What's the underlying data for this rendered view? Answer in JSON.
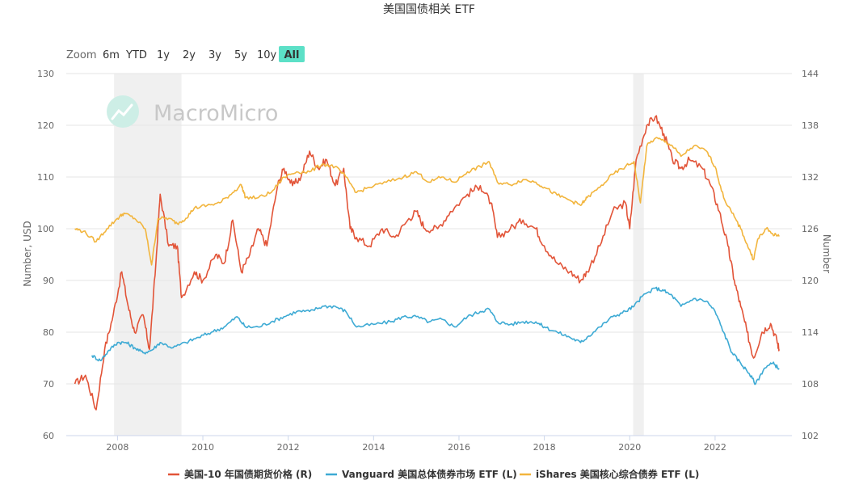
{
  "chart_data": {
    "type": "line",
    "title": "美国国债相关 ETF",
    "watermark": "MacroMicro",
    "left_axis": {
      "label": "Number, USD",
      "range": [
        60,
        130
      ],
      "ticks": [
        "60",
        "70",
        "80",
        "90",
        "100",
        "110",
        "120",
        "130"
      ]
    },
    "right_axis": {
      "label": "Number",
      "range": [
        102,
        144
      ],
      "ticks": [
        "102",
        "108",
        "114",
        "120",
        "126",
        "132",
        "138",
        "144"
      ]
    },
    "x_range": [
      2006.8,
      2023.8
    ],
    "x_ticks": [
      "2008",
      "2010",
      "2012",
      "2014",
      "2016",
      "2018",
      "2020",
      "2022"
    ],
    "grid": true,
    "legend_position": "bottom",
    "recession_shading": [
      [
        2007.92,
        2009.5
      ],
      [
        2020.08,
        2020.33
      ]
    ],
    "series": [
      {
        "name": "美国-10 年国债期货价格 (R)",
        "axis": "right",
        "color": "#e25438",
        "points": [
          [
            2007.0,
            108
          ],
          [
            2007.25,
            109
          ],
          [
            2007.5,
            105
          ],
          [
            2007.7,
            112
          ],
          [
            2007.9,
            116
          ],
          [
            2008.1,
            121
          ],
          [
            2008.25,
            117
          ],
          [
            2008.4,
            114
          ],
          [
            2008.6,
            116
          ],
          [
            2008.75,
            112
          ],
          [
            2008.9,
            122
          ],
          [
            2009.0,
            130
          ],
          [
            2009.2,
            124
          ],
          [
            2009.4,
            124
          ],
          [
            2009.5,
            118
          ],
          [
            2009.8,
            121
          ],
          [
            2010.0,
            120
          ],
          [
            2010.3,
            123
          ],
          [
            2010.5,
            122
          ],
          [
            2010.7,
            127
          ],
          [
            2010.9,
            121
          ],
          [
            2011.1,
            123
          ],
          [
            2011.3,
            126
          ],
          [
            2011.5,
            124
          ],
          [
            2011.75,
            131
          ],
          [
            2011.9,
            133
          ],
          [
            2012.1,
            131
          ],
          [
            2012.3,
            132
          ],
          [
            2012.5,
            135
          ],
          [
            2012.7,
            133
          ],
          [
            2012.9,
            134
          ],
          [
            2013.1,
            131
          ],
          [
            2013.3,
            133
          ],
          [
            2013.45,
            126
          ],
          [
            2013.6,
            125
          ],
          [
            2013.9,
            124
          ],
          [
            2014.2,
            126
          ],
          [
            2014.5,
            125
          ],
          [
            2014.8,
            127
          ],
          [
            2015.0,
            128
          ],
          [
            2015.2,
            126
          ],
          [
            2015.5,
            126
          ],
          [
            2015.8,
            128
          ],
          [
            2016.2,
            130
          ],
          [
            2016.5,
            131
          ],
          [
            2016.75,
            129
          ],
          [
            2016.9,
            125
          ],
          [
            2017.2,
            126
          ],
          [
            2017.5,
            127
          ],
          [
            2017.8,
            126
          ],
          [
            2018.0,
            124
          ],
          [
            2018.3,
            122
          ],
          [
            2018.6,
            121
          ],
          [
            2018.85,
            120
          ],
          [
            2019.0,
            121
          ],
          [
            2019.3,
            124
          ],
          [
            2019.6,
            128
          ],
          [
            2019.9,
            129
          ],
          [
            2020.0,
            126
          ],
          [
            2020.15,
            134
          ],
          [
            2020.4,
            138
          ],
          [
            2020.6,
            139
          ],
          [
            2020.8,
            137
          ],
          [
            2021.0,
            134
          ],
          [
            2021.2,
            133
          ],
          [
            2021.4,
            134
          ],
          [
            2021.7,
            133
          ],
          [
            2021.9,
            131
          ],
          [
            2022.1,
            128
          ],
          [
            2022.3,
            124
          ],
          [
            2022.45,
            120
          ],
          [
            2022.6,
            117
          ],
          [
            2022.75,
            114
          ],
          [
            2022.9,
            111
          ],
          [
            2023.1,
            114
          ],
          [
            2023.3,
            115
          ],
          [
            2023.45,
            113
          ],
          [
            2023.5,
            112
          ]
        ]
      },
      {
        "name": "Vanguard 美国总体债券市场 ETF (L)",
        "axis": "left",
        "color": "#3daad4",
        "points": [
          [
            2007.4,
            75.5
          ],
          [
            2007.6,
            74.5
          ],
          [
            2007.8,
            76.5
          ],
          [
            2008.0,
            78
          ],
          [
            2008.2,
            78
          ],
          [
            2008.4,
            77
          ],
          [
            2008.6,
            76
          ],
          [
            2008.8,
            76.5
          ],
          [
            2009.0,
            78
          ],
          [
            2009.3,
            77
          ],
          [
            2009.6,
            78
          ],
          [
            2009.9,
            79
          ],
          [
            2010.2,
            80
          ],
          [
            2010.5,
            81
          ],
          [
            2010.8,
            83
          ],
          [
            2011.0,
            81
          ],
          [
            2011.3,
            81
          ],
          [
            2011.6,
            82
          ],
          [
            2011.9,
            83
          ],
          [
            2012.2,
            84
          ],
          [
            2012.5,
            84
          ],
          [
            2012.8,
            85
          ],
          [
            2013.1,
            85
          ],
          [
            2013.35,
            84
          ],
          [
            2013.6,
            81
          ],
          [
            2014.0,
            81.5
          ],
          [
            2014.4,
            82
          ],
          [
            2014.7,
            83
          ],
          [
            2015.0,
            83
          ],
          [
            2015.3,
            82
          ],
          [
            2015.6,
            82.5
          ],
          [
            2015.9,
            81
          ],
          [
            2016.2,
            83
          ],
          [
            2016.5,
            84
          ],
          [
            2016.7,
            84.5
          ],
          [
            2016.9,
            82
          ],
          [
            2017.2,
            81.5
          ],
          [
            2017.5,
            82
          ],
          [
            2017.8,
            82
          ],
          [
            2018.0,
            81
          ],
          [
            2018.3,
            80
          ],
          [
            2018.6,
            79
          ],
          [
            2018.85,
            78
          ],
          [
            2019.0,
            79
          ],
          [
            2019.3,
            81
          ],
          [
            2019.6,
            83
          ],
          [
            2019.9,
            84
          ],
          [
            2020.1,
            85
          ],
          [
            2020.3,
            87
          ],
          [
            2020.6,
            88.5
          ],
          [
            2020.8,
            88
          ],
          [
            2021.0,
            87
          ],
          [
            2021.2,
            85
          ],
          [
            2021.5,
            86.5
          ],
          [
            2021.8,
            86
          ],
          [
            2022.0,
            84
          ],
          [
            2022.2,
            80
          ],
          [
            2022.4,
            76
          ],
          [
            2022.6,
            74
          ],
          [
            2022.8,
            72
          ],
          [
            2022.95,
            70
          ],
          [
            2023.15,
            73
          ],
          [
            2023.35,
            74
          ],
          [
            2023.5,
            73
          ]
        ]
      },
      {
        "name": "iShares 美国核心综合债券 ETF (L)",
        "axis": "left",
        "color": "#f2b53d",
        "points": [
          [
            2007.0,
            100
          ],
          [
            2007.2,
            99.5
          ],
          [
            2007.5,
            97.5
          ],
          [
            2007.75,
            100
          ],
          [
            2008.0,
            102
          ],
          [
            2008.15,
            103
          ],
          [
            2008.4,
            102
          ],
          [
            2008.65,
            100
          ],
          [
            2008.8,
            93
          ],
          [
            2008.95,
            102
          ],
          [
            2009.2,
            102
          ],
          [
            2009.4,
            101
          ],
          [
            2009.6,
            102
          ],
          [
            2009.8,
            104
          ],
          [
            2010.1,
            104.5
          ],
          [
            2010.4,
            105
          ],
          [
            2010.7,
            107
          ],
          [
            2010.9,
            108.5
          ],
          [
            2011.0,
            106
          ],
          [
            2011.3,
            106
          ],
          [
            2011.6,
            107
          ],
          [
            2011.9,
            110
          ],
          [
            2012.2,
            111
          ],
          [
            2012.5,
            111
          ],
          [
            2012.8,
            112.5
          ],
          [
            2013.1,
            112
          ],
          [
            2013.35,
            110
          ],
          [
            2013.6,
            107
          ],
          [
            2013.9,
            108
          ],
          [
            2014.3,
            109
          ],
          [
            2014.7,
            110
          ],
          [
            2015.0,
            111
          ],
          [
            2015.3,
            109
          ],
          [
            2015.6,
            110
          ],
          [
            2015.9,
            109
          ],
          [
            2016.2,
            111
          ],
          [
            2016.5,
            112
          ],
          [
            2016.7,
            113
          ],
          [
            2016.9,
            109
          ],
          [
            2017.2,
            108.5
          ],
          [
            2017.5,
            109.5
          ],
          [
            2017.8,
            109
          ],
          [
            2018.0,
            108
          ],
          [
            2018.3,
            106.5
          ],
          [
            2018.6,
            105.5
          ],
          [
            2018.85,
            104.5
          ],
          [
            2019.0,
            106
          ],
          [
            2019.3,
            108
          ],
          [
            2019.6,
            110.5
          ],
          [
            2019.9,
            112
          ],
          [
            2020.1,
            113
          ],
          [
            2020.25,
            105
          ],
          [
            2020.4,
            116
          ],
          [
            2020.6,
            117.5
          ],
          [
            2020.8,
            117
          ],
          [
            2021.0,
            116
          ],
          [
            2021.2,
            114
          ],
          [
            2021.5,
            116
          ],
          [
            2021.8,
            115
          ],
          [
            2022.0,
            112
          ],
          [
            2022.2,
            106
          ],
          [
            2022.4,
            103
          ],
          [
            2022.6,
            100
          ],
          [
            2022.8,
            96
          ],
          [
            2022.9,
            94
          ],
          [
            2023.0,
            98
          ],
          [
            2023.2,
            100
          ],
          [
            2023.35,
            99
          ],
          [
            2023.5,
            98.5
          ]
        ]
      }
    ]
  },
  "range_selector": {
    "label": "Zoom",
    "buttons": [
      "6m",
      "YTD",
      "1y",
      "2y",
      "3y",
      "5y",
      "10y",
      "All"
    ],
    "selected": "All",
    "selected_color": "#5ce0c7"
  }
}
